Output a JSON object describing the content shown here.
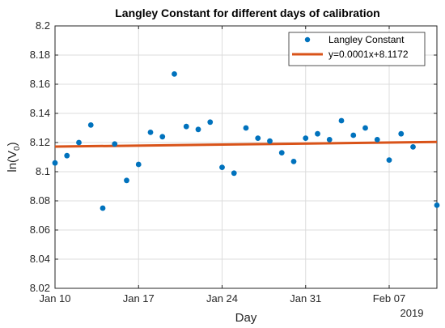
{
  "chart_data": {
    "type": "scatter",
    "title": "Langley Constant for different days of calibration",
    "xlabel": "Day",
    "ylabel_main": "ln(V",
    "ylabel_sub": "0",
    "ylabel_close": ")",
    "year_label": "2019",
    "ylim": [
      8.02,
      8.2
    ],
    "yticks": [
      8.02,
      8.04,
      8.06,
      8.08,
      8.1,
      8.12,
      8.14,
      8.16,
      8.18,
      8.2
    ],
    "ytick_labels": [
      "8.02",
      "8.04",
      "8.06",
      "8.08",
      "8.1",
      "8.12",
      "8.14",
      "8.16",
      "8.18",
      "8.2"
    ],
    "xlim": [
      "2019-01-10",
      "2019-02-11"
    ],
    "xticks": [
      "2019-01-10",
      "2019-01-17",
      "2019-01-24",
      "2019-01-31",
      "2019-02-07"
    ],
    "xtick_labels": [
      "Jan 10",
      "Jan 17",
      "Jan 24",
      "Jan 31",
      "Feb 07"
    ],
    "grid": true,
    "legend_position": "top-right",
    "series": [
      {
        "name": "Langley Constant",
        "kind": "scatter",
        "color": "#0072BD",
        "points": [
          {
            "x": "2019-01-10",
            "y": 8.106
          },
          {
            "x": "2019-01-11",
            "y": 8.111
          },
          {
            "x": "2019-01-12",
            "y": 8.12
          },
          {
            "x": "2019-01-13",
            "y": 8.132
          },
          {
            "x": "2019-01-14",
            "y": 8.075
          },
          {
            "x": "2019-01-15",
            "y": 8.119
          },
          {
            "x": "2019-01-16",
            "y": 8.094
          },
          {
            "x": "2019-01-17",
            "y": 8.105
          },
          {
            "x": "2019-01-18",
            "y": 8.127
          },
          {
            "x": "2019-01-19",
            "y": 8.124
          },
          {
            "x": "2019-01-20",
            "y": 8.167
          },
          {
            "x": "2019-01-21",
            "y": 8.131
          },
          {
            "x": "2019-01-22",
            "y": 8.129
          },
          {
            "x": "2019-01-23",
            "y": 8.134
          },
          {
            "x": "2019-01-24",
            "y": 8.103
          },
          {
            "x": "2019-01-25",
            "y": 8.099
          },
          {
            "x": "2019-01-26",
            "y": 8.13
          },
          {
            "x": "2019-01-27",
            "y": 8.123
          },
          {
            "x": "2019-01-28",
            "y": 8.121
          },
          {
            "x": "2019-01-29",
            "y": 8.113
          },
          {
            "x": "2019-01-30",
            "y": 8.107
          },
          {
            "x": "2019-01-31",
            "y": 8.123
          },
          {
            "x": "2019-02-01",
            "y": 8.126
          },
          {
            "x": "2019-02-02",
            "y": 8.122
          },
          {
            "x": "2019-02-03",
            "y": 8.135
          },
          {
            "x": "2019-02-04",
            "y": 8.125
          },
          {
            "x": "2019-02-05",
            "y": 8.13
          },
          {
            "x": "2019-02-06",
            "y": 8.122
          },
          {
            "x": "2019-02-07",
            "y": 8.108
          },
          {
            "x": "2019-02-08",
            "y": 8.126
          },
          {
            "x": "2019-02-09",
            "y": 8.117
          },
          {
            "x": "2019-02-11",
            "y": 8.077
          }
        ]
      },
      {
        "name": "y=0.0001x+8.1172",
        "kind": "line",
        "color": "#D95319",
        "points": [
          {
            "x": "2019-01-10",
            "y": 8.1172
          },
          {
            "x": "2019-02-11",
            "y": 8.1204
          }
        ]
      }
    ]
  }
}
